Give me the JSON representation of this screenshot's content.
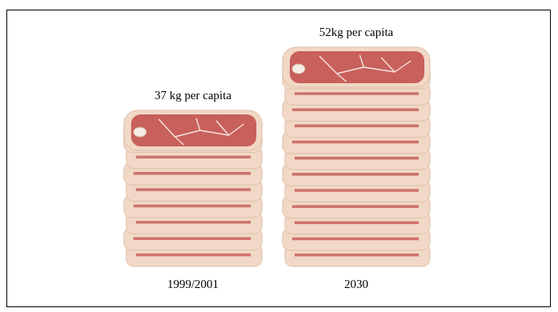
{
  "chart_data": {
    "type": "bar",
    "categories": [
      "1999/2001",
      "2030"
    ],
    "values": [
      37,
      52
    ],
    "value_labels": [
      "37 kg per capita",
      "52kg per capita"
    ],
    "data_labels": true,
    "color": "#c8605b",
    "grid": false,
    "tick_labels": "x"
  }
}
